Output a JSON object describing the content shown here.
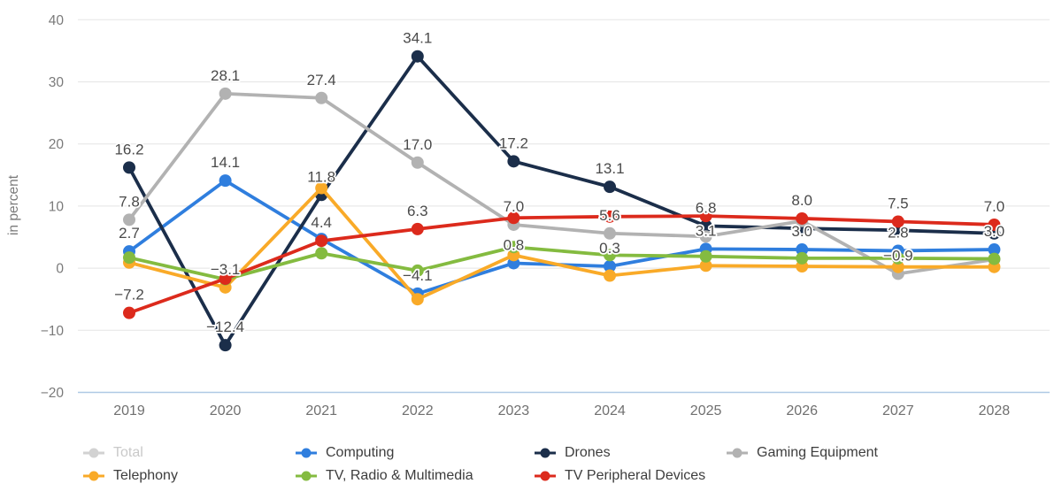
{
  "chart": {
    "ylabel": "in percent",
    "y_tick_labels": [
      "40",
      "30",
      "20",
      "10",
      "0",
      "−10",
      "−20"
    ],
    "x_tick_labels": [
      "2019",
      "2020",
      "2021",
      "2022",
      "2023",
      "2024",
      "2025",
      "2026",
      "2027",
      "2028"
    ]
  },
  "chart_data": {
    "type": "line",
    "title": "",
    "xlabel": "",
    "ylabel": "in percent",
    "ylim": [
      -20,
      40
    ],
    "y_ticks": [
      40,
      30,
      20,
      10,
      0,
      -10,
      -20
    ],
    "grid": true,
    "legend_position": "bottom",
    "x": [
      2019,
      2020,
      2021,
      2022,
      2023,
      2024,
      2025,
      2026,
      2027,
      2028
    ],
    "series": [
      {
        "name": "Total",
        "color": "#d2d2d2",
        "disabled": true,
        "values": null,
        "point_labels": null
      },
      {
        "name": "Computing",
        "color": "#2f7ede",
        "disabled": false,
        "values": [
          2.7,
          14.1,
          4.7,
          -4.1,
          0.8,
          0.3,
          3.1,
          3.0,
          2.8,
          3.0
        ],
        "point_labels": [
          "2.7",
          "14.1",
          null,
          "−4.1",
          "0.8",
          "0.3",
          "3.1",
          "3.0",
          "2.8",
          "3.0"
        ]
      },
      {
        "name": "Drones",
        "color": "#1b2e4a",
        "disabled": false,
        "values": [
          16.2,
          -12.4,
          11.8,
          34.1,
          17.2,
          13.1,
          6.8,
          6.4,
          6.1,
          5.6
        ],
        "point_labels": [
          "16.2",
          "−12.4",
          "11.8",
          "34.1",
          "17.2",
          "13.1",
          "6.8",
          null,
          null,
          null
        ]
      },
      {
        "name": "Gaming Equipment",
        "color": "#b2b2b2",
        "disabled": false,
        "values": [
          7.8,
          28.1,
          27.4,
          17.0,
          7.0,
          5.6,
          5.1,
          7.6,
          -0.9,
          1.4
        ],
        "point_labels": [
          "7.8",
          "28.1",
          "27.4",
          "17.0",
          "7.0",
          "5.6",
          null,
          null,
          "−0.9",
          null
        ]
      },
      {
        "name": "Telephony",
        "color": "#f9aa28",
        "disabled": false,
        "values": [
          0.9,
          -3.1,
          12.9,
          -5.0,
          2.1,
          -1.2,
          0.4,
          0.3,
          0.2,
          0.2
        ],
        "point_labels": [
          null,
          "−3.1",
          null,
          null,
          null,
          null,
          null,
          null,
          null,
          null
        ]
      },
      {
        "name": "TV, Radio & Multimedia",
        "color": "#84bb40",
        "disabled": false,
        "values": [
          1.7,
          -1.8,
          2.4,
          -0.4,
          3.4,
          2.1,
          1.9,
          1.6,
          1.6,
          1.5
        ],
        "point_labels": [
          null,
          null,
          null,
          null,
          null,
          null,
          null,
          null,
          null,
          null
        ]
      },
      {
        "name": "TV Peripheral Devices",
        "color": "#dc2a1c",
        "disabled": false,
        "values": [
          -7.2,
          -1.7,
          4.4,
          6.3,
          8.1,
          8.3,
          8.4,
          8.0,
          7.5,
          7.0
        ],
        "point_labels": [
          "−7.2",
          null,
          "4.4",
          "6.3",
          null,
          null,
          null,
          "8.0",
          "7.5",
          "7.0"
        ]
      }
    ]
  }
}
